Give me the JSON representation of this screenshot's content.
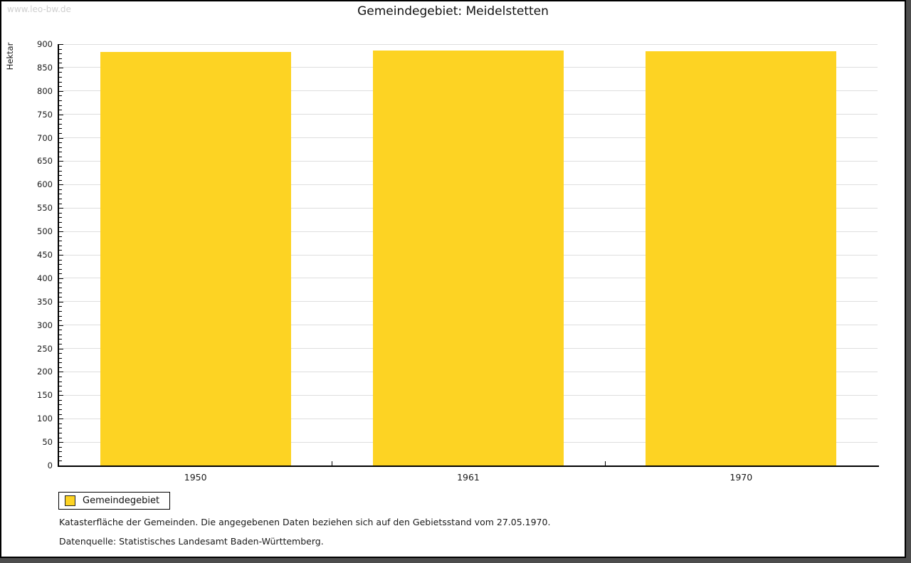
{
  "watermark": "www.leo-bw.de",
  "title": "Gemeindegebiet: Meidelstetten",
  "legend": {
    "label": "Gemeindegebiet"
  },
  "footnotes": {
    "line1": "Katasterfläche der Gemeinden. Die angegebenen Daten beziehen sich auf den Gebietsstand vom 27.05.1970.",
    "line2": "Datenquelle: Statistisches Landesamt Baden-Württemberg."
  },
  "colors": {
    "bar": "#FDD323",
    "grid": "#DEDEDE",
    "axis": "#000000",
    "watermark": "#CFCFCF",
    "frame_shadow": "#4D4D4D"
  },
  "chart_data": {
    "type": "bar",
    "title": "Gemeindegebiet: Meidelstetten",
    "categories": [
      "1950",
      "1961",
      "1970"
    ],
    "series": [
      {
        "name": "Gemeindegebiet",
        "values": [
          884,
          886,
          885
        ]
      }
    ],
    "xlabel": "",
    "ylabel": "Hektar",
    "ylim": [
      0,
      900
    ],
    "y_major_step": 50,
    "y_minor_step": 10,
    "grid": true,
    "legend_position": "bottom-left"
  }
}
